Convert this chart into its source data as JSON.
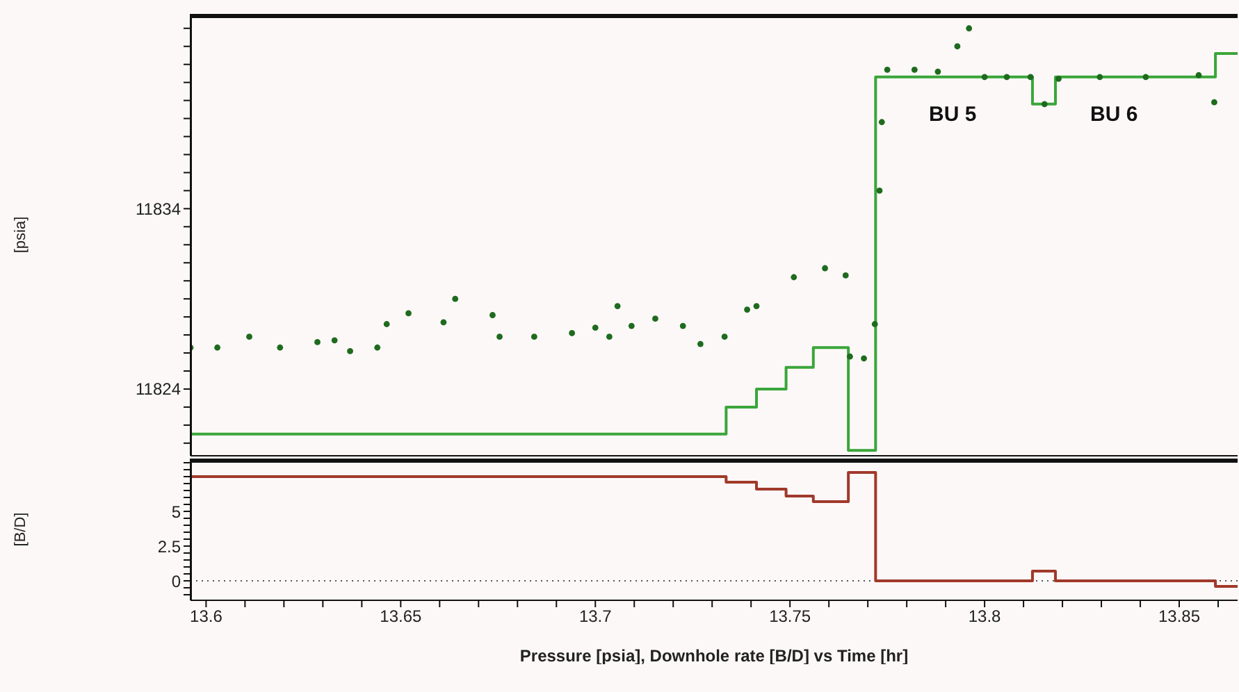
{
  "chart_data": [
    {
      "type": "scatter",
      "ylabel": "[psia]",
      "xlim": [
        13.596,
        13.865
      ],
      "ylim": [
        11820.3,
        11844.8
      ],
      "yticks": [
        {
          "value": 11821,
          "label": null
        },
        {
          "value": 11822,
          "label": null
        },
        {
          "value": 11823,
          "label": null
        },
        11824,
        {
          "value": 11825,
          "label": null
        },
        {
          "value": 11826,
          "label": null
        },
        {
          "value": 11827,
          "label": null
        },
        {
          "value": 11828,
          "label": null
        },
        {
          "value": 11829,
          "label": null
        },
        {
          "value": 11830,
          "label": null
        },
        {
          "value": 11831,
          "label": null
        },
        {
          "value": 11832,
          "label": null
        },
        {
          "value": 11833,
          "label": null
        },
        11834,
        {
          "value": 11835,
          "label": null
        },
        {
          "value": 11836,
          "label": null
        },
        {
          "value": 11837,
          "label": null
        },
        {
          "value": 11838,
          "label": null
        },
        {
          "value": 11839,
          "label": null
        },
        {
          "value": 11840,
          "label": null
        },
        {
          "value": 11841,
          "label": null
        },
        {
          "value": 11842,
          "label": null
        },
        {
          "value": 11843,
          "label": null
        },
        {
          "value": 11844,
          "label": null
        }
      ],
      "tick_labels": "y",
      "annotations": [
        "BU 5",
        "BU 6"
      ],
      "series": [
        {
          "type": "step",
          "color": "#3aa63a",
          "x": [
            13.596,
            13.7336,
            13.7414,
            13.749,
            13.756,
            13.765,
            13.772,
            13.8123,
            13.8182,
            13.8593,
            13.865
          ],
          "values": [
            11821.5,
            11823.0,
            11824.0,
            11825.2,
            11826.3,
            11820.6,
            11841.3,
            11839.8,
            11841.3,
            11842.6,
            11842.6
          ]
        },
        {
          "marker": "circle",
          "color": "#1e6b1e",
          "x": [
            13.596,
            13.6029,
            13.6111,
            13.619,
            13.6286,
            13.633,
            13.637,
            13.644,
            13.6464,
            13.652,
            13.661,
            13.664,
            13.6736,
            13.6754,
            13.6843,
            13.694,
            13.7,
            13.7036,
            13.7057,
            13.7093,
            13.7154,
            13.7225,
            13.727,
            13.7332,
            13.739,
            13.7414,
            13.751,
            13.759,
            13.7643,
            13.7654,
            13.769,
            13.7718,
            13.773,
            13.7736,
            13.775,
            13.782,
            13.788,
            13.793,
            13.796,
            13.8,
            13.8057,
            13.8118,
            13.8154,
            13.819,
            13.8296,
            13.8414,
            13.855,
            13.859
          ],
          "values": [
            11826.3,
            11826.3,
            11826.9,
            11826.3,
            11826.6,
            11826.7,
            11826.1,
            11826.3,
            11827.6,
            11828.2,
            11827.7,
            11829.0,
            11828.1,
            11826.9,
            11826.9,
            11827.1,
            11827.4,
            11826.9,
            11828.6,
            11827.5,
            11827.9,
            11827.5,
            11826.5,
            11826.9,
            11828.4,
            11828.6,
            11830.2,
            11830.7,
            11830.3,
            11825.8,
            11825.7,
            11827.6,
            11835.0,
            11838.8,
            11841.7,
            11841.7,
            11841.6,
            11843.0,
            11844.0,
            11841.3,
            11841.3,
            11841.3,
            11839.8,
            11841.2,
            11841.3,
            11841.3,
            11841.4,
            11839.9
          ]
        }
      ]
    },
    {
      "type": "step",
      "ylabel": "[B/D]",
      "xlabel": "Pressure [psia], Downhole rate [B/D] vs Time [hr]",
      "xlim": [
        13.596,
        13.865
      ],
      "ylim": [
        -1.4,
        8.8
      ],
      "xticks": [
        13.6,
        {
          "value": 13.61,
          "label": null
        },
        {
          "value": 13.62,
          "label": null
        },
        {
          "value": 13.63,
          "label": null
        },
        {
          "value": 13.64,
          "label": null
        },
        13.65,
        {
          "value": 13.66,
          "label": null
        },
        {
          "value": 13.67,
          "label": null
        },
        {
          "value": 13.68,
          "label": null
        },
        {
          "value": 13.69,
          "label": null
        },
        13.7,
        {
          "value": 13.71,
          "label": null
        },
        {
          "value": 13.72,
          "label": null
        },
        {
          "value": 13.73,
          "label": null
        },
        {
          "value": 13.74,
          "label": null
        },
        13.75,
        {
          "value": 13.76,
          "label": null
        },
        {
          "value": 13.77,
          "label": null
        },
        {
          "value": 13.78,
          "label": null
        },
        {
          "value": 13.79,
          "label": null
        },
        13.8,
        {
          "value": 13.81,
          "label": null
        },
        {
          "value": 13.82,
          "label": null
        },
        {
          "value": 13.83,
          "label": null
        },
        {
          "value": 13.84,
          "label": null
        },
        13.85,
        {
          "value": 13.86,
          "label": null
        }
      ],
      "yticks": [
        {
          "value": -1,
          "label": null
        },
        {
          "value": -0.5,
          "label": null
        },
        0,
        {
          "value": 0.5,
          "label": null
        },
        {
          "value": 1,
          "label": null
        },
        {
          "value": 1.5,
          "label": null
        },
        {
          "value": 2,
          "label": null
        },
        2.5,
        {
          "value": 3,
          "label": null
        },
        {
          "value": 3.5,
          "label": null
        },
        {
          "value": 4,
          "label": null
        },
        {
          "value": 4.5,
          "label": null
        },
        5,
        {
          "value": 5.5,
          "label": null
        },
        {
          "value": 6,
          "label": null
        },
        {
          "value": 6.5,
          "label": null
        },
        {
          "value": 7,
          "label": null
        },
        {
          "value": 7.5,
          "label": null
        },
        {
          "value": 8,
          "label": null
        },
        {
          "value": 8.5,
          "label": null
        }
      ],
      "ref_lines": [
        {
          "axis": "y",
          "value": 0,
          "color": "#555555",
          "line_style": "dotted"
        }
      ],
      "series": [
        {
          "color": "#a0392a",
          "x": [
            13.596,
            13.7336,
            13.7414,
            13.749,
            13.756,
            13.765,
            13.772,
            13.8123,
            13.8182,
            13.8593,
            13.865
          ],
          "values": [
            7.5,
            7.1,
            6.6,
            6.1,
            5.7,
            7.8,
            0,
            0.7,
            0,
            -0.4,
            -0.4
          ]
        }
      ]
    }
  ]
}
